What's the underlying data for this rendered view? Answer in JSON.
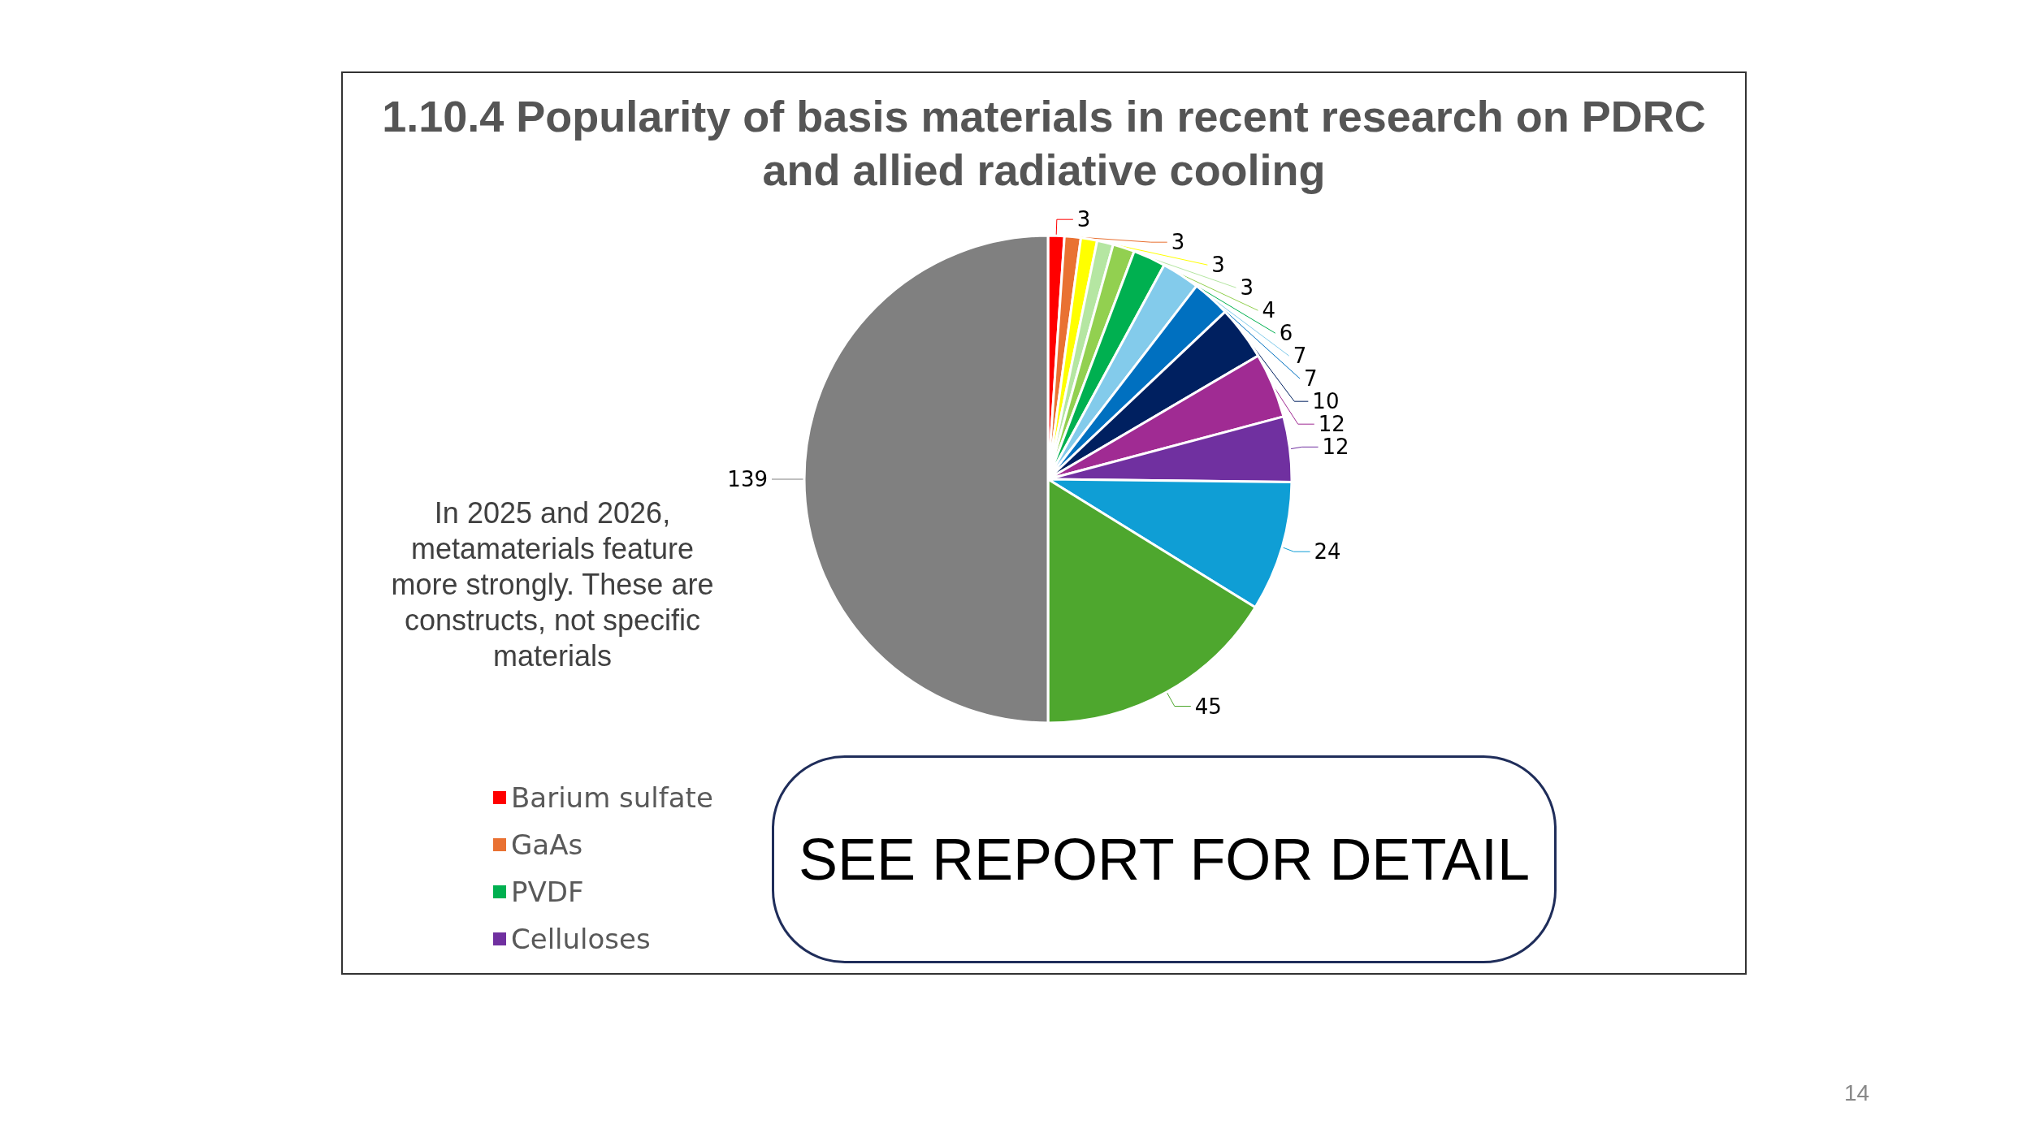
{
  "chart_data": {
    "type": "pie",
    "title": "1.10.4  Popularity of basis materials in recent research on PDRC and allied radiative cooling",
    "categories": [
      "Barium sulfate",
      "GaAs",
      null,
      null,
      null,
      "PVDF",
      null,
      null,
      null,
      null,
      "Celluloses",
      null,
      null,
      null
    ],
    "values": [
      3,
      3,
      3,
      3,
      4,
      6,
      7,
      7,
      10,
      12,
      12,
      24,
      45,
      139
    ],
    "colors": [
      "#ff0000",
      "#e97132",
      "#ffff00",
      "#b5e6a2",
      "#92d050",
      "#00b050",
      "#83cbeb",
      "#0070c0",
      "#002060",
      "#a02b93",
      "#7030a0",
      "#0f9ed5",
      "#4ea72e",
      "#808080"
    ],
    "data_labels": true,
    "legend": "bottom left",
    "annotations": [
      "In 2025 and 2026, metamaterials feature more strongly. These are constructs, not specific materials",
      "SEE REPORT FOR DETAIL",
      "14"
    ]
  }
}
